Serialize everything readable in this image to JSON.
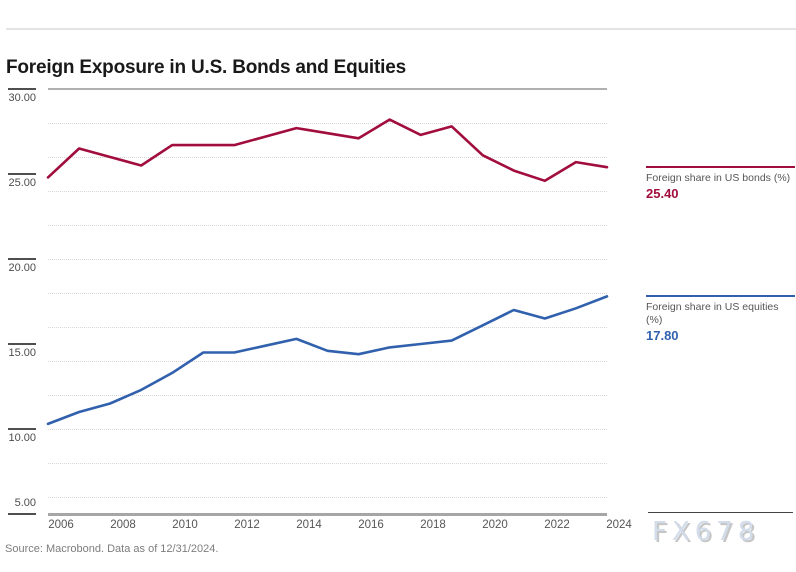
{
  "page": {
    "title": "Foreign Exposure in U.S. Bonds and Equities",
    "source_note": "Source: Macrobond. Data as of 12/31/2024.",
    "watermark": "FX678"
  },
  "chart_data": {
    "type": "line",
    "title": "Foreign Exposure in U.S. Bonds and Equities",
    "x": [
      2006,
      2007,
      2008,
      2009,
      2010,
      2011,
      2012,
      2013,
      2014,
      2015,
      2016,
      2017,
      2018,
      2019,
      2020,
      2021,
      2022,
      2023,
      2024
    ],
    "series": [
      {
        "name": "Foreign share in US bonds (%)",
        "color": "#A10D3C",
        "values": [
          24.8,
          26.5,
          26.0,
          25.5,
          26.7,
          26.7,
          26.7,
          27.2,
          27.7,
          27.4,
          27.1,
          28.2,
          27.3,
          27.8,
          26.1,
          25.2,
          24.6,
          25.7,
          25.4
        ],
        "last_value": 25.4
      },
      {
        "name": "Foreign share in US equities (%)",
        "color": "#3161AD",
        "values": [
          10.3,
          11.0,
          11.5,
          12.3,
          13.3,
          14.5,
          14.5,
          14.9,
          15.3,
          14.6,
          14.4,
          14.8,
          15.0,
          15.2,
          16.1,
          17.0,
          16.5,
          17.1,
          17.8
        ],
        "last_value": 17.8
      }
    ],
    "ylim": [
      5,
      30
    ],
    "yticks": [
      {
        "label": "30.00",
        "value": 30
      },
      {
        "label": "25.00",
        "value": 25
      },
      {
        "label": "20.00",
        "value": 20
      },
      {
        "label": "15.00",
        "value": 15
      },
      {
        "label": "10.00",
        "value": 10
      },
      {
        "label": "5.00",
        "value": 5
      }
    ],
    "xticks": [
      "2006",
      "2008",
      "2010",
      "2012",
      "2014",
      "2016",
      "2018",
      "2020",
      "2022",
      "2024"
    ],
    "gridline_values": [
      6,
      8,
      10,
      12,
      14,
      16,
      18,
      20,
      22,
      24,
      26,
      28
    ],
    "grid": "dotted horizontal",
    "legend_position": "right"
  },
  "legend": {
    "items": [
      {
        "label": "Foreign share in US bonds (%)",
        "value": "25.40",
        "value_num": 25.4,
        "color": "#A10D3C"
      },
      {
        "label": "Foreign share in US equities (%)",
        "value": "17.80",
        "value_num": 17.8,
        "color": "#3161AD"
      }
    ]
  }
}
